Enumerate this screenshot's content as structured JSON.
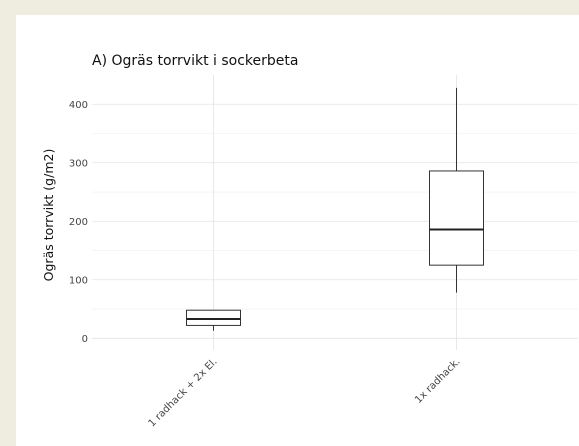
{
  "chart_data": {
    "type": "box",
    "title": "A) Ogräs torrvikt i sockerbeta",
    "xlabel": "",
    "ylabel": "Ogräs torrvikt (g/m2)",
    "ylim": [
      -20,
      450
    ],
    "yticks": [
      0,
      100,
      200,
      300,
      400
    ],
    "grid": true,
    "categories": [
      "1 radhack + 2x El.",
      "1x radhack."
    ],
    "boxes": [
      {
        "category": "1 radhack + 2x El.",
        "min": 13,
        "q1": 22,
        "median": 33,
        "q3": 48,
        "max": 48
      },
      {
        "category": "1x radhack.",
        "min": 78,
        "q1": 125,
        "median": 186,
        "q3": 286,
        "max": 428
      }
    ]
  }
}
